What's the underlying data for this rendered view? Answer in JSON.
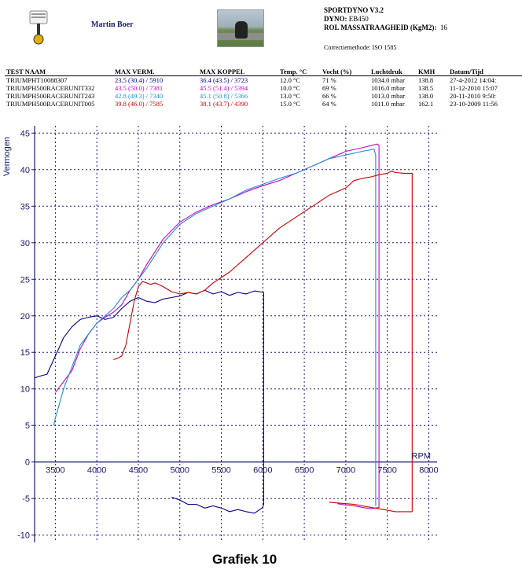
{
  "header": {
    "user": "Martin Boer",
    "app_title": "SPORTDYNO V3.2",
    "dyno_label": "DYNO:",
    "dyno_value": "EB450",
    "inertia_label": "ROL MASSATRAAGHEID (KgM2):",
    "inertia_value": "16",
    "correction": "Correctiemethode: ISO 1585"
  },
  "table": {
    "columns": [
      "TEST NAAM",
      "MAX VERM.",
      "MAX KOPPEL",
      "Temp. °C",
      "Vocht (%)",
      "Luchtdruk",
      "KMH",
      "Datum/Tijd"
    ],
    "rows": [
      {
        "name": "TRIUMPHT10088307",
        "verm": "23.5 (30.4) / 5910",
        "koppel": "36.4 (43.5) / 3723",
        "temp": "12.0 °C",
        "vocht": "71 %",
        "druk": "1034.0 mbar",
        "kmh": "138.8",
        "datum": "27-4-2012 14:04:",
        "color": "#00008b"
      },
      {
        "name": "TRIUMPH500RACERUNIT332",
        "verm": "43.5 (50.0) / 7381",
        "koppel": "45.5 (51.4) / 5394",
        "temp": "10.0 °C",
        "vocht": "69 %",
        "druk": "1016.0 mbar",
        "kmh": "138.5",
        "datum": "11-12-2010 15:07",
        "color": "#cc00cc"
      },
      {
        "name": "TRIUMPH500RACERUNIT243",
        "verm": "42.8 (49.3) / 7340",
        "koppel": "45.1 (50.8) / 5366",
        "temp": "13.0 °C",
        "vocht": "66 %",
        "druk": "1013.0 mbar",
        "kmh": "138.0",
        "datum": "20-11-2010 9:50:",
        "color": "#1e8fd6"
      },
      {
        "name": "TRIUMPH500RACERUNIT005",
        "verm": "39.8 (46.0) / 7585",
        "koppel": "38.1 (43.7) / 4390",
        "temp": "15.0 °C",
        "vocht": "64 %",
        "druk": "1011.0 mbar",
        "kmh": "162.1",
        "datum": "23-10-2009 11:56",
        "color": "#cc0000"
      }
    ]
  },
  "caption": "Grafiek 10",
  "chart_data": {
    "type": "line",
    "ylabel": "Vermogen",
    "xlabel": "RPM",
    "xlim": [
      3250,
      8100
    ],
    "ylim": [
      -11,
      46
    ],
    "xticks": [
      3500,
      4000,
      4500,
      5000,
      5500,
      6000,
      6500,
      7000,
      7500,
      8000
    ],
    "yticks": [
      -10,
      -5,
      0,
      5,
      10,
      15,
      20,
      25,
      30,
      35,
      40,
      45
    ],
    "grid": true,
    "series": [
      {
        "name": "TRIUMPHT10088307",
        "color": "#00008b",
        "x": [
          3250,
          3300,
          3400,
          3500,
          3600,
          3700,
          3800,
          3900,
          4000,
          4100,
          4200,
          4300,
          4400,
          4500,
          4600,
          4700,
          4800,
          4900,
          5000,
          5100,
          5200,
          5300,
          5400,
          5500,
          5600,
          5700,
          5800,
          5900,
          6010,
          6010,
          6000,
          5900,
          5800,
          5700,
          5600,
          5500,
          5400,
          5300,
          5200,
          5100,
          5000,
          4900
        ],
        "y": [
          11.5,
          11.7,
          12.0,
          14.5,
          17.0,
          18.5,
          19.5,
          19.8,
          20.0,
          19.5,
          19.8,
          21.0,
          22.0,
          22.5,
          22.0,
          21.8,
          22.3,
          22.5,
          22.7,
          23.2,
          23.0,
          23.5,
          23.0,
          23.3,
          22.8,
          23.2,
          23.0,
          23.4,
          23.2,
          -5.8,
          -6.2,
          -7.0,
          -6.8,
          -6.5,
          -6.8,
          -6.3,
          -6.0,
          -6.3,
          -5.8,
          -5.8,
          -5.2,
          -4.8
        ]
      },
      {
        "name": "TRIUMPH500RACERUNIT332",
        "color": "#cc00cc",
        "x": [
          3500,
          3600,
          3700,
          3800,
          3900,
          4000,
          4100,
          4200,
          4300,
          4400,
          4500,
          4600,
          4800,
          5000,
          5200,
          5400,
          5600,
          5800,
          6000,
          6200,
          6400,
          6600,
          6800,
          7000,
          7200,
          7381,
          7400,
          7400,
          7300,
          7200,
          7100,
          7000,
          6900
        ],
        "y": [
          9.5,
          11.0,
          12.5,
          15.5,
          17.5,
          19.0,
          19.8,
          20.5,
          21.5,
          23.5,
          25.0,
          27.0,
          30.5,
          32.8,
          34.2,
          35.2,
          36.0,
          37.0,
          37.8,
          38.5,
          39.5,
          40.5,
          41.5,
          42.5,
          43.0,
          43.5,
          43.3,
          -6.2,
          -6.4,
          -6.2,
          -6.0,
          -5.9,
          -5.7
        ]
      },
      {
        "name": "TRIUMPH500RACERUNIT243",
        "color": "#1e8fd6",
        "x": [
          3480,
          3500,
          3550,
          3600,
          3650,
          3700,
          3800,
          3900,
          4000,
          4100,
          4200,
          4300,
          4400,
          4500,
          4600,
          4800,
          5000,
          5200,
          5400,
          5600,
          5800,
          6000,
          6200,
          6400,
          6600,
          6800,
          7000,
          7200,
          7340,
          7360,
          7360
        ],
        "y": [
          5.0,
          6.0,
          8.0,
          10.0,
          11.5,
          13.0,
          16.0,
          17.5,
          19.0,
          20.0,
          21.0,
          22.5,
          23.5,
          25.0,
          26.5,
          30.0,
          32.5,
          34.0,
          35.0,
          36.0,
          37.2,
          38.0,
          38.8,
          39.5,
          40.5,
          41.5,
          42.0,
          42.5,
          42.8,
          42.0,
          -6.0
        ]
      },
      {
        "name": "TRIUMPH500RACERUNIT005",
        "color": "#cc0000",
        "x": [
          4200,
          4250,
          4300,
          4350,
          4400,
          4450,
          4500,
          4550,
          4600,
          4650,
          4700,
          4800,
          4900,
          5000,
          5100,
          5200,
          5300,
          5400,
          5600,
          5800,
          6000,
          6200,
          6400,
          6600,
          6800,
          7000,
          7100,
          7200,
          7300,
          7400,
          7500,
          7550,
          7600,
          7700,
          7800,
          7800,
          7700,
          7600,
          7500,
          7400,
          7300,
          7200,
          7100,
          7000,
          6800
        ],
        "y": [
          14.0,
          14.2,
          14.5,
          16.0,
          19.0,
          22.0,
          24.0,
          24.7,
          24.5,
          24.3,
          24.5,
          24.0,
          23.3,
          23.0,
          23.2,
          23.0,
          23.5,
          24.5,
          26.0,
          28.0,
          30.0,
          32.0,
          33.5,
          35.0,
          36.5,
          37.5,
          38.5,
          38.8,
          39.0,
          39.3,
          39.5,
          39.8,
          39.6,
          39.5,
          39.5,
          -6.8,
          -6.8,
          -6.8,
          -6.6,
          -6.4,
          -6.2,
          -6.0,
          -5.8,
          -5.7,
          -5.5
        ]
      }
    ]
  }
}
